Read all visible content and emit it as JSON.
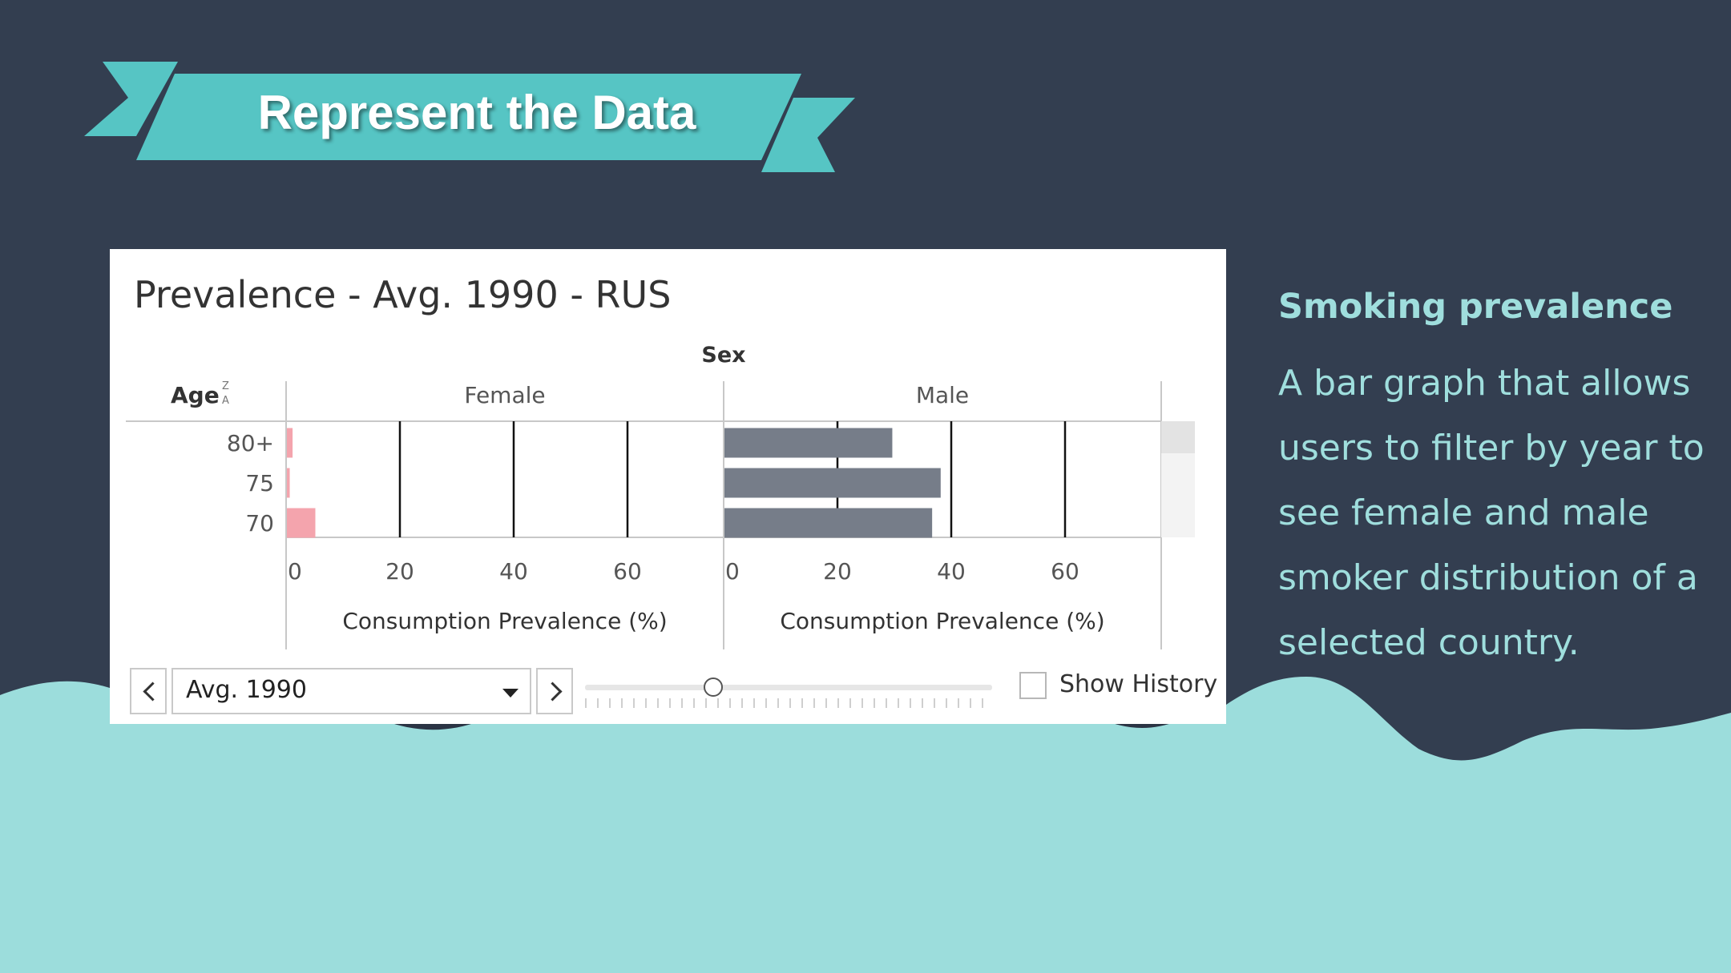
{
  "banner": {
    "title": "Represent the Data"
  },
  "colors": {
    "background": "#333e50",
    "teal": "#56c5c4",
    "wave": "#9cdddc",
    "female_bar": "#f4a4ad",
    "male_bar": "#767d89"
  },
  "panel": {
    "title": "Prevalence - Avg. 1990 - RUS",
    "controls": {
      "prev_icon": "chevron-left-icon",
      "next_icon": "chevron-right-icon",
      "select_value": "Avg. 1990",
      "checkbox_label": "Show History",
      "checkbox_checked": false
    }
  },
  "chart_data": {
    "type": "bar",
    "orientation": "horizontal",
    "column_header": "Sex",
    "row_header": "Age",
    "categories": [
      "80+",
      "75",
      "70"
    ],
    "series": [
      {
        "name": "Female",
        "values": [
          1,
          0.5,
          5
        ]
      },
      {
        "name": "Male",
        "values": [
          29.5,
          38,
          36.5
        ]
      }
    ],
    "xlabel": "Consumption Prevalence (%)",
    "xticks": [
      "0",
      "20",
      "40",
      "60"
    ],
    "xlim": [
      0,
      76
    ],
    "grid": true
  },
  "sidebar": {
    "heading": "Smoking prevalence",
    "body": "A bar graph that allows users to filter by year to see female and male smoker distribution of a selected country."
  }
}
